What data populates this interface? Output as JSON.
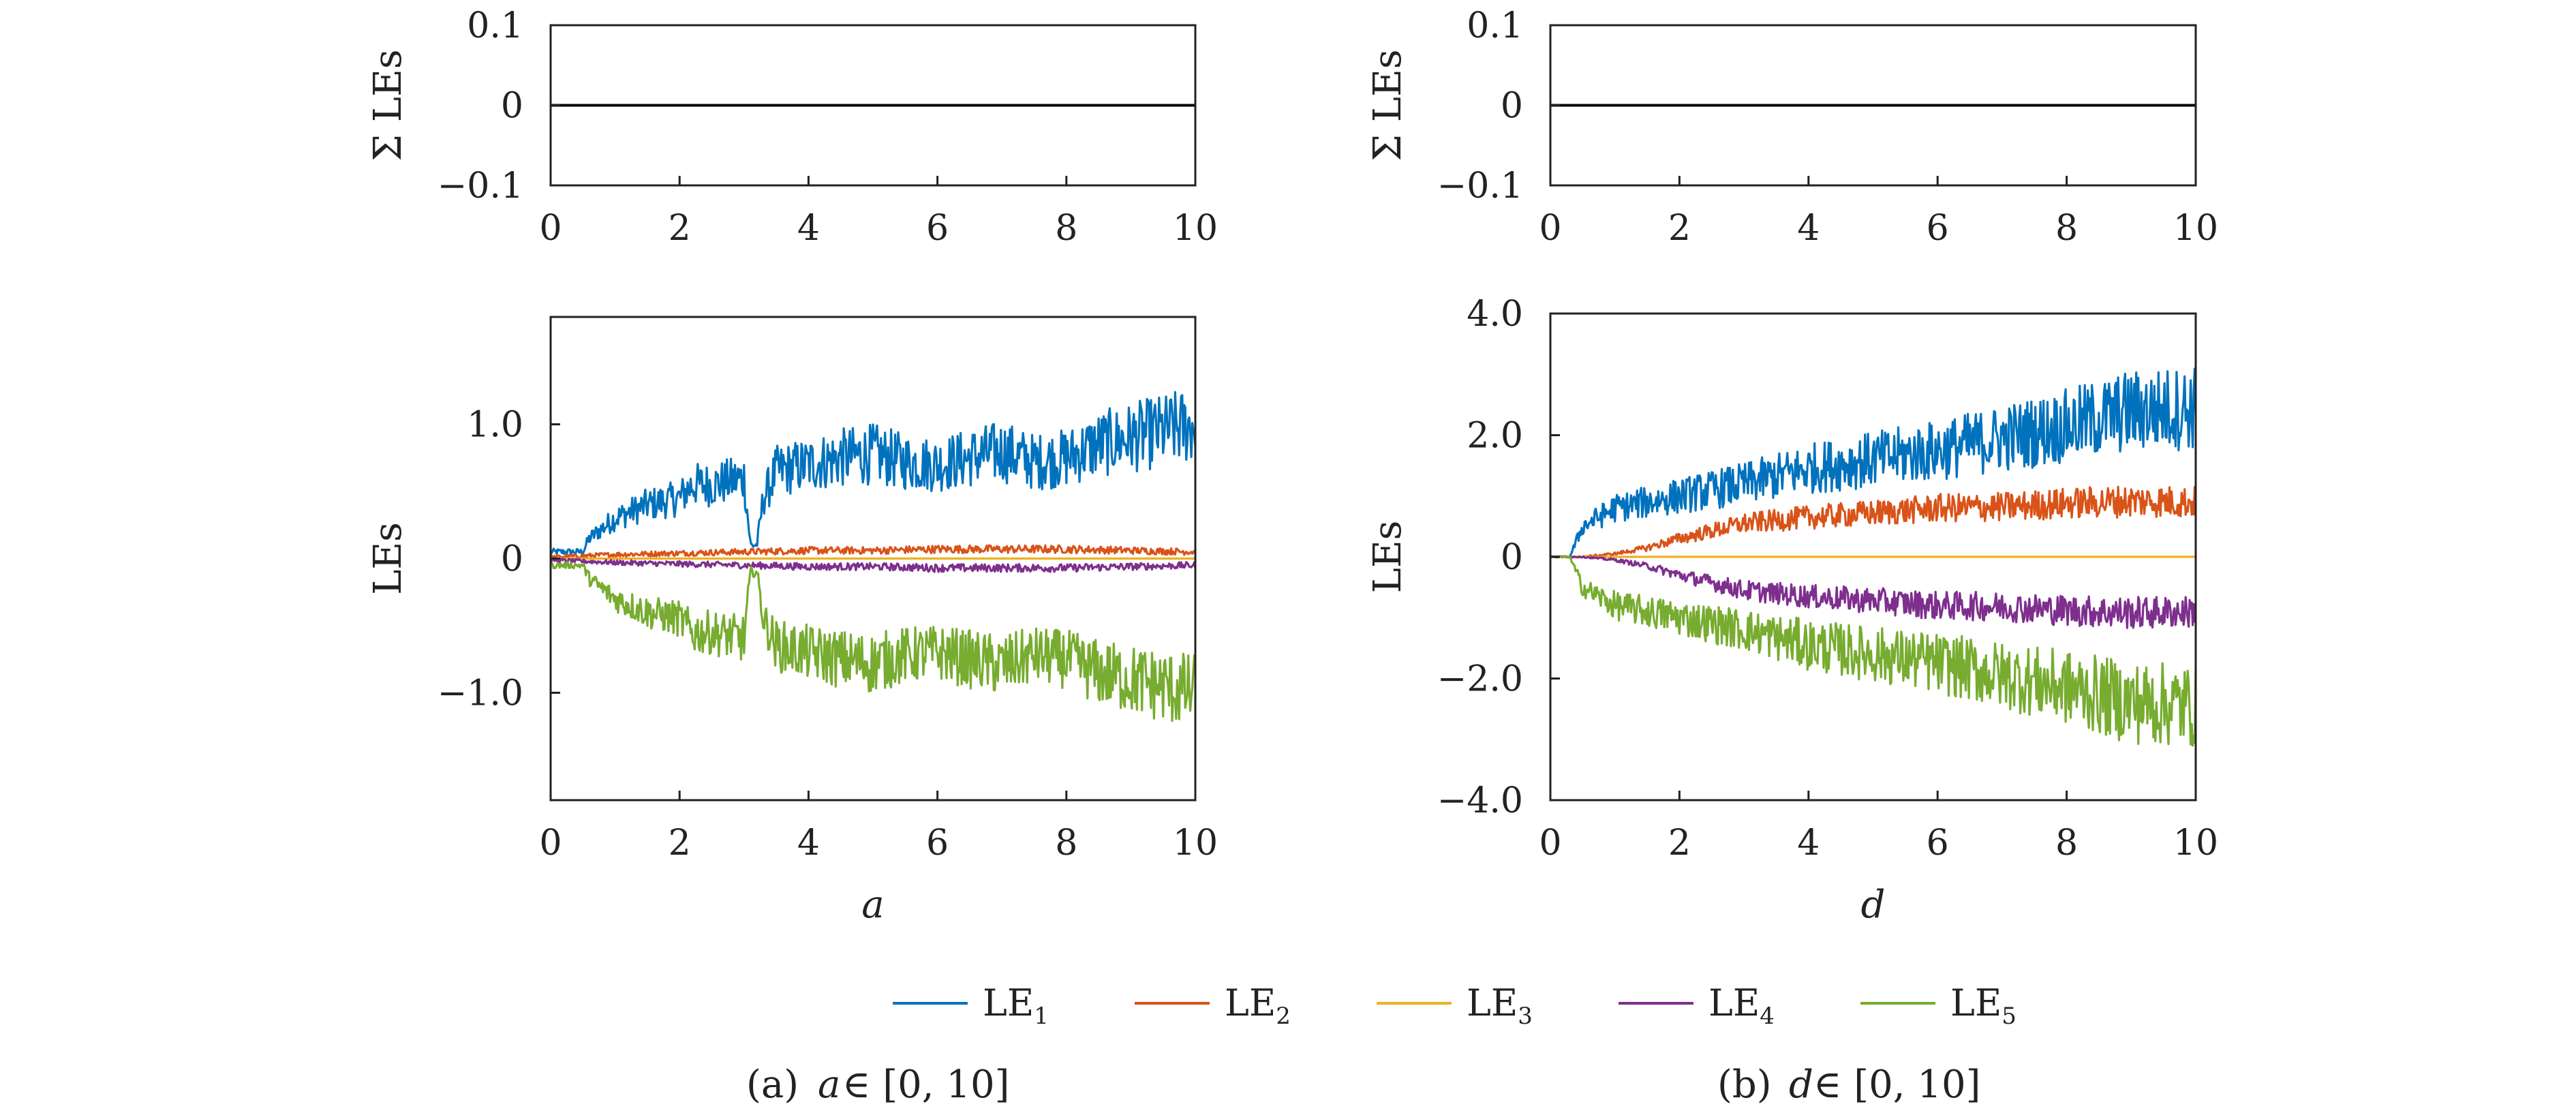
{
  "colors": {
    "LE1": "#0072BD",
    "LE2": "#D95319",
    "LE3": "#EDB120",
    "LE4": "#7E2F8E",
    "LE5": "#77AC30"
  },
  "legend": [
    {
      "key": "LE1",
      "base": "LE",
      "sub": "1"
    },
    {
      "key": "LE2",
      "base": "LE",
      "sub": "2"
    },
    {
      "key": "LE3",
      "base": "LE",
      "sub": "3"
    },
    {
      "key": "LE4",
      "base": "LE",
      "sub": "4"
    },
    {
      "key": "LE5",
      "base": "LE",
      "sub": "5"
    }
  ],
  "chart_data": [
    {
      "id": "a-sum",
      "type": "line",
      "ylabel": "Σ LEs",
      "xlabel": "",
      "xlim": [
        0,
        10
      ],
      "ylim": [
        -0.1,
        0.1
      ],
      "xticks": [
        0,
        2,
        4,
        6,
        8,
        10
      ],
      "yticks": [
        -0.1,
        0,
        0.1
      ],
      "ytick_labels": [
        "−0.1",
        "0",
        "0.1"
      ],
      "series": [
        {
          "name": "Σ LEs",
          "x": [
            0,
            10
          ],
          "values": [
            0,
            0
          ]
        }
      ]
    },
    {
      "id": "b-sum",
      "type": "line",
      "ylabel": "Σ LEs",
      "xlabel": "",
      "xlim": [
        0,
        10
      ],
      "ylim": [
        -0.1,
        0.1
      ],
      "xticks": [
        0,
        2,
        4,
        6,
        8,
        10
      ],
      "yticks": [
        -0.1,
        0,
        0.1
      ],
      "ytick_labels": [
        "−0.1",
        "0",
        "0.1"
      ],
      "series": [
        {
          "name": "Σ LEs",
          "x": [
            0,
            10
          ],
          "values": [
            0,
            0
          ]
        }
      ]
    },
    {
      "id": "a-les",
      "type": "line",
      "ylabel": "LEs",
      "xlabel": "a",
      "xlim": [
        0,
        10
      ],
      "ylim": [
        -1.8,
        1.8
      ],
      "xticks": [
        0,
        2,
        4,
        6,
        8,
        10
      ],
      "yticks": [
        -1.0,
        0,
        1.0
      ],
      "ytick_labels": [
        "−1.0",
        "0",
        "1.0"
      ],
      "series": [
        {
          "name": "LE1",
          "x": [
            0,
            0.5,
            0.6,
            1.0,
            1.5,
            2.0,
            2.2,
            2.5,
            3.0,
            3.1,
            3.2,
            3.3,
            3.5,
            4.0,
            4.5,
            5.0,
            5.5,
            6.0,
            6.5,
            7.0,
            7.5,
            8.0,
            8.5,
            9.0,
            9.5,
            10.0
          ],
          "values": [
            0.05,
            0.05,
            0.15,
            0.3,
            0.4,
            0.45,
            0.55,
            0.55,
            0.6,
            0.1,
            0.1,
            0.45,
            0.65,
            0.7,
            0.75,
            0.78,
            0.72,
            0.7,
            0.75,
            0.8,
            0.72,
            0.75,
            0.85,
            0.9,
            0.95,
            1.0
          ]
        },
        {
          "name": "LE2",
          "x": [
            0,
            1,
            2,
            3,
            4,
            5,
            6,
            7,
            8,
            9,
            10
          ],
          "values": [
            0.01,
            0.03,
            0.04,
            0.05,
            0.06,
            0.06,
            0.07,
            0.07,
            0.07,
            0.06,
            0.05
          ]
        },
        {
          "name": "LE3",
          "x": [
            0,
            10
          ],
          "values": [
            0,
            0
          ]
        },
        {
          "name": "LE4",
          "x": [
            0,
            1,
            2,
            3,
            4,
            5,
            6,
            7,
            8,
            9,
            10
          ],
          "values": [
            -0.01,
            -0.03,
            -0.04,
            -0.05,
            -0.06,
            -0.06,
            -0.07,
            -0.07,
            -0.07,
            -0.06,
            -0.05
          ]
        },
        {
          "name": "LE5",
          "x": [
            0,
            0.5,
            0.6,
            1.0,
            1.5,
            2.0,
            2.2,
            2.5,
            3.0,
            3.1,
            3.2,
            3.3,
            3.5,
            4.0,
            4.5,
            5.0,
            5.5,
            6.0,
            6.5,
            7.0,
            7.5,
            8.0,
            8.5,
            9.0,
            9.5,
            10.0
          ],
          "values": [
            -0.05,
            -0.05,
            -0.15,
            -0.3,
            -0.4,
            -0.45,
            -0.55,
            -0.55,
            -0.6,
            -0.1,
            -0.1,
            -0.45,
            -0.65,
            -0.7,
            -0.75,
            -0.78,
            -0.72,
            -0.7,
            -0.75,
            -0.8,
            -0.72,
            -0.75,
            -0.85,
            -0.9,
            -0.95,
            -1.0
          ]
        }
      ]
    },
    {
      "id": "b-les",
      "type": "line",
      "ylabel": "LEs",
      "xlabel": "d",
      "xlim": [
        0,
        10
      ],
      "ylim": [
        -4.0,
        4.0
      ],
      "xticks": [
        0,
        2,
        4,
        6,
        8,
        10
      ],
      "yticks": [
        -4.0,
        -2.0,
        0,
        2.0,
        4.0
      ],
      "ytick_labels": [
        "−4.0",
        "−2.0",
        "0",
        "2.0",
        "4.0"
      ],
      "series": [
        {
          "name": "LE1",
          "x": [
            0,
            0.3,
            0.5,
            1.0,
            2.0,
            3.0,
            4.0,
            5.0,
            6.0,
            7.0,
            8.0,
            9.0,
            10.0
          ],
          "values": [
            0,
            0,
            0.5,
            0.8,
            1.0,
            1.2,
            1.45,
            1.6,
            1.75,
            1.95,
            2.15,
            2.4,
            2.45
          ]
        },
        {
          "name": "LE2",
          "x": [
            0,
            0.5,
            1.0,
            1.5,
            2.0,
            3.0,
            4.0,
            5.0,
            6.0,
            7.0,
            8.0,
            9.0,
            10.0
          ],
          "values": [
            0,
            0,
            0.05,
            0.15,
            0.3,
            0.55,
            0.65,
            0.72,
            0.8,
            0.82,
            0.88,
            0.92,
            0.9
          ]
        },
        {
          "name": "LE3",
          "x": [
            0,
            10
          ],
          "values": [
            0,
            0
          ]
        },
        {
          "name": "LE4",
          "x": [
            0,
            0.5,
            1.0,
            1.5,
            2.0,
            3.0,
            4.0,
            5.0,
            6.0,
            7.0,
            8.0,
            9.0,
            10.0
          ],
          "values": [
            0,
            0,
            -0.05,
            -0.15,
            -0.3,
            -0.55,
            -0.65,
            -0.72,
            -0.8,
            -0.82,
            -0.88,
            -0.92,
            -0.9
          ]
        },
        {
          "name": "LE5",
          "x": [
            0,
            0.3,
            0.5,
            1.0,
            2.0,
            3.0,
            4.0,
            5.0,
            6.0,
            7.0,
            8.0,
            9.0,
            10.0
          ],
          "values": [
            0,
            0,
            -0.5,
            -0.8,
            -1.0,
            -1.2,
            -1.45,
            -1.6,
            -1.75,
            -1.95,
            -2.15,
            -2.4,
            -2.45
          ]
        }
      ]
    }
  ],
  "captions": [
    {
      "label": "(a)",
      "var": "a",
      "rest": "∈ [0, 10]"
    },
    {
      "label": "(b)",
      "var": "d",
      "rest": "∈ [0, 10]"
    }
  ]
}
